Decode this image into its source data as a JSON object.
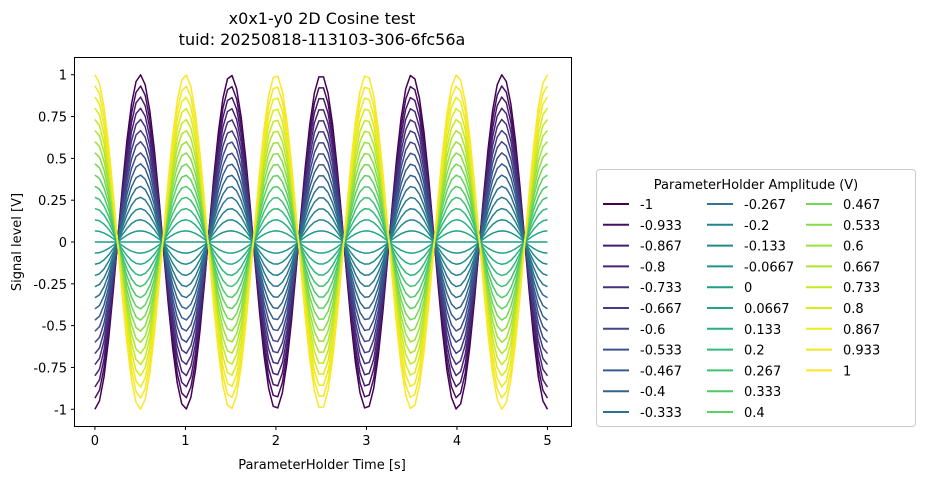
{
  "chart_data": {
    "type": "line",
    "title": "x0x1-y0 2D Cosine test",
    "subtitle": "tuid: 20250818-113103-306-6fc56a",
    "xlabel": "ParameterHolder Time [s]",
    "ylabel": "Signal level [V]",
    "xlim": [
      -0.22,
      5.26
    ],
    "ylim": [
      -1.1,
      1.1
    ],
    "x_ticks": [
      0,
      1,
      2,
      3,
      4,
      5
    ],
    "x_tick_labels": [
      "0",
      "1",
      "2",
      "3",
      "4",
      "5"
    ],
    "y_ticks": [
      -1,
      -0.75,
      -0.5,
      -0.25,
      0,
      0.25,
      0.5,
      0.75,
      1
    ],
    "y_tick_labels": [
      "-1",
      "-0.75",
      "-0.5",
      "-0.25",
      "0",
      "0.25",
      "0.5",
      "0.75",
      "1"
    ],
    "grid": false,
    "x_start": 0,
    "x_end": 5,
    "num_points": 100,
    "frequency_hz": 1,
    "function": "y = amplitude * cos(2*pi*frequency*t)",
    "colormap": "viridis",
    "legend": {
      "title": "ParameterHolder Amplitude (V)",
      "placement": "right, outside plot",
      "columns": 3
    },
    "series": [
      {
        "name": "-1",
        "amplitude": -1,
        "color": "#440154"
      },
      {
        "name": "-0.933",
        "amplitude": -0.933,
        "color": "#470e61"
      },
      {
        "name": "-0.867",
        "amplitude": -0.867,
        "color": "#481a6c"
      },
      {
        "name": "-0.8",
        "amplitude": -0.8,
        "color": "#482576"
      },
      {
        "name": "-0.733",
        "amplitude": -0.733,
        "color": "#46307e"
      },
      {
        "name": "-0.667",
        "amplitude": -0.667,
        "color": "#433b84"
      },
      {
        "name": "-0.6",
        "amplitude": -0.6,
        "color": "#3f4689"
      },
      {
        "name": "-0.533",
        "amplitude": -0.533,
        "color": "#3b518b"
      },
      {
        "name": "-0.467",
        "amplitude": -0.467,
        "color": "#365b8c"
      },
      {
        "name": "-0.4",
        "amplitude": -0.4,
        "color": "#31658e"
      },
      {
        "name": "-0.333",
        "amplitude": -0.333,
        "color": "#2d6f8e"
      },
      {
        "name": "-0.267",
        "amplitude": -0.267,
        "color": "#29788e"
      },
      {
        "name": "-0.2",
        "amplitude": -0.2,
        "color": "#25818e"
      },
      {
        "name": "-0.133",
        "amplitude": -0.133,
        "color": "#228a8d"
      },
      {
        "name": "-0.0667",
        "amplitude": -0.0667,
        "color": "#1f948c"
      },
      {
        "name": "0",
        "amplitude": 0,
        "color": "#1f9d89"
      },
      {
        "name": "0.0667",
        "amplitude": 0.0667,
        "color": "#21a685"
      },
      {
        "name": "0.133",
        "amplitude": 0.133,
        "color": "#27af80"
      },
      {
        "name": "0.2",
        "amplitude": 0.2,
        "color": "#31b87b"
      },
      {
        "name": "0.267",
        "amplitude": 0.267,
        "color": "#3fc072"
      },
      {
        "name": "0.333",
        "amplitude": 0.333,
        "color": "#4ec869"
      },
      {
        "name": "0.4",
        "amplitude": 0.4,
        "color": "#5fd05f"
      },
      {
        "name": "0.467",
        "amplitude": 0.467,
        "color": "#72d653"
      },
      {
        "name": "0.533",
        "amplitude": 0.533,
        "color": "#86dc47"
      },
      {
        "name": "0.6",
        "amplitude": 0.6,
        "color": "#9ae13a"
      },
      {
        "name": "0.667",
        "amplitude": 0.667,
        "color": "#afe52d"
      },
      {
        "name": "0.733",
        "amplitude": 0.733,
        "color": "#c4e920"
      },
      {
        "name": "0.8",
        "amplitude": 0.8,
        "color": "#d8eb1a"
      },
      {
        "name": "0.867",
        "amplitude": 0.867,
        "color": "#eaec1c"
      },
      {
        "name": "0.933",
        "amplitude": 0.933,
        "color": "#f4e825"
      },
      {
        "name": "1",
        "amplitude": 1,
        "color": "#fde725"
      }
    ]
  }
}
